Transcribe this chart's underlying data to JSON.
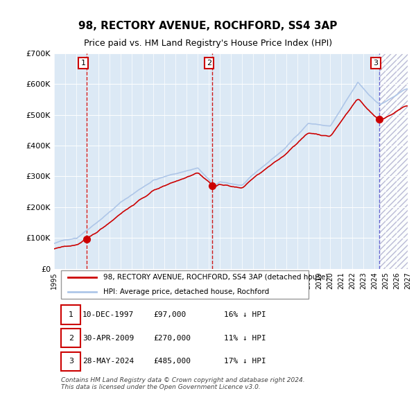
{
  "title": "98, RECTORY AVENUE, ROCHFORD, SS4 3AP",
  "subtitle": "Price paid vs. HM Land Registry's House Price Index (HPI)",
  "x_start_year": 1995,
  "x_end_year": 2027,
  "y_min": 0,
  "y_max": 700000,
  "y_ticks": [
    0,
    100000,
    200000,
    300000,
    400000,
    500000,
    600000,
    700000
  ],
  "y_tick_labels": [
    "£0",
    "£100K",
    "£200K",
    "£300K",
    "£400K",
    "£500K",
    "£600K",
    "£700K"
  ],
  "sale_dates": [
    "1997-12-10",
    "2009-04-30",
    "2024-05-28"
  ],
  "sale_prices": [
    97000,
    270000,
    485000
  ],
  "sale_labels": [
    "1",
    "2",
    "3"
  ],
  "hpi_color": "#aec6e8",
  "price_color": "#cc0000",
  "vline_colors": [
    "#cc0000",
    "#cc0000",
    "#5555cc"
  ],
  "bg_color": "#dce9f5",
  "future_hatch_color": "#aaaacc",
  "legend_label_red": "98, RECTORY AVENUE, ROCHFORD, SS4 3AP (detached house)",
  "legend_label_blue": "HPI: Average price, detached house, Rochford",
  "table_rows": [
    [
      "1",
      "10-DEC-1997",
      "£97,000",
      "16% ↓ HPI"
    ],
    [
      "2",
      "30-APR-2009",
      "£270,000",
      "11% ↓ HPI"
    ],
    [
      "3",
      "28-MAY-2024",
      "£485,000",
      "17% ↓ HPI"
    ]
  ],
  "footer": "Contains HM Land Registry data © Crown copyright and database right 2024.\nThis data is licensed under the Open Government Licence v3.0."
}
